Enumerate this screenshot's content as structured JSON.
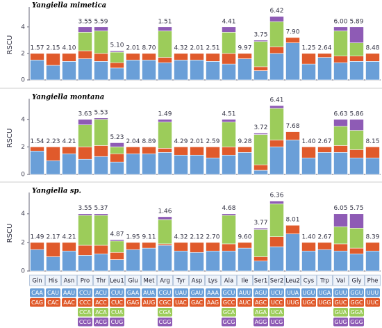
{
  "chart_data": [
    {
      "type": "bar",
      "stacked": true,
      "title": "Yangiella mimetica",
      "ylabel": "RSCU",
      "ylim": [
        0,
        5.3
      ],
      "yticks": [
        0,
        2,
        4
      ],
      "annotations": [
        "1.57",
        "2.15",
        "4.10",
        "3.55",
        "5.59",
        "5.10",
        "2.01",
        "8.70",
        "1.51",
        "4.32",
        "2.01",
        "2.51",
        "4.41",
        "9.97",
        "3.75",
        "6.42",
        "7.90",
        "1.25",
        "2.64",
        "6.00",
        "5.89",
        "8.48"
      ],
      "series": [
        {
          "color": "#6a9fd8",
          "values": [
            1.5,
            1.1,
            1.4,
            1.6,
            1.4,
            0.9,
            1.5,
            1.5,
            1.3,
            1.5,
            1.5,
            1.4,
            1.2,
            1.6,
            0.7,
            2.0,
            2.8,
            1.2,
            1.7,
            1.3,
            1.4,
            1.4
          ]
        },
        {
          "color": "#e05a2b",
          "values": [
            0.5,
            0.9,
            0.6,
            0.6,
            0.6,
            0.4,
            0.5,
            0.5,
            0.4,
            0.5,
            0.5,
            0.6,
            0.8,
            0.4,
            0.3,
            0.5,
            0.4,
            0.8,
            0.3,
            0.5,
            0.4,
            0.6
          ]
        },
        {
          "color": "#9ccc5a",
          "values": [
            null,
            null,
            null,
            1.4,
            1.7,
            0.8,
            null,
            null,
            2.0,
            null,
            null,
            null,
            1.6,
            null,
            1.9,
            1.9,
            null,
            null,
            null,
            1.9,
            1.0,
            null
          ]
        },
        {
          "color": "#8e5bb5",
          "values": [
            null,
            null,
            null,
            0.4,
            0.3,
            0.1,
            null,
            null,
            0.3,
            null,
            null,
            null,
            0.4,
            null,
            0.1,
            0.4,
            null,
            null,
            null,
            0.3,
            1.2,
            null
          ]
        }
      ]
    },
    {
      "type": "bar",
      "stacked": true,
      "title": "Yangiella montana",
      "ylabel": "RSCU",
      "ylim": [
        0,
        5.3
      ],
      "yticks": [
        0,
        2,
        4
      ],
      "annotations": [
        "1.54",
        "2.23",
        "4.21",
        "3.63",
        "5.53",
        "5.23",
        "2.04",
        "8.89",
        "1.49",
        "4.29",
        "2.01",
        "2.59",
        "4.51",
        "9.28",
        "3.72",
        "6.41",
        "7.68",
        "1.40",
        "2.67",
        "6.63",
        "5.86",
        "8.15"
      ],
      "series": [
        {
          "color": "#6a9fd8",
          "values": [
            1.7,
            1.0,
            1.5,
            1.1,
            1.3,
            0.9,
            1.5,
            1.5,
            1.6,
            1.4,
            1.4,
            1.2,
            1.4,
            1.6,
            0.3,
            2.0,
            2.5,
            1.2,
            1.6,
            1.6,
            1.2,
            1.2
          ]
        },
        {
          "color": "#e05a2b",
          "values": [
            0.3,
            1.0,
            0.5,
            0.9,
            0.8,
            0.6,
            0.5,
            0.5,
            0.3,
            0.6,
            0.6,
            0.8,
            0.6,
            0.4,
            0.4,
            0.5,
            0.6,
            0.8,
            0.4,
            0.5,
            0.6,
            0.8
          ]
        },
        {
          "color": "#9ccc5a",
          "values": [
            null,
            null,
            null,
            1.6,
            1.9,
            0.5,
            null,
            null,
            1.9,
            null,
            null,
            null,
            1.8,
            null,
            2.2,
            2.3,
            null,
            null,
            null,
            1.4,
            1.4,
            null
          ]
        },
        {
          "color": "#8e5bb5",
          "values": [
            null,
            null,
            null,
            0.4,
            0.1,
            0.3,
            null,
            null,
            0.2,
            null,
            null,
            null,
            0.2,
            null,
            0.1,
            0.2,
            null,
            null,
            null,
            0.5,
            0.8,
            null
          ]
        }
      ]
    },
    {
      "type": "bar",
      "stacked": true,
      "title": "Yangiella sp.",
      "ylabel": "RSCU",
      "ylim": [
        0,
        5.3
      ],
      "yticks": [
        0,
        2,
        4
      ],
      "categories": [
        "Gln",
        "His",
        "Asn",
        "Pro",
        "Thr",
        "Leu1",
        "Glu",
        "Met",
        "Arg",
        "Tyr",
        "Asp",
        "Lys",
        "Ala",
        "Ile",
        "Ser1",
        "Ser2",
        "Leu2",
        "Cys",
        "Trp",
        "Val",
        "Gly",
        "Phe"
      ],
      "annotations": [
        "1.49",
        "2.17",
        "4.21",
        "3.55",
        "5.37",
        "4.87",
        "1.95",
        "9.11",
        "1.46",
        "4.32",
        "2.12",
        "2.70",
        "4.68",
        "9.60",
        "3.77",
        "6.36",
        "8.01",
        "1.40",
        "2.67",
        "6.05",
        "5.75",
        "8.39"
      ],
      "series": [
        {
          "color": "#6a9fd8",
          "values": [
            1.5,
            1.0,
            1.4,
            1.1,
            1.2,
            0.8,
            1.5,
            1.6,
            1.8,
            1.4,
            1.3,
            1.4,
            1.4,
            1.6,
            0.7,
            1.7,
            2.6,
            1.4,
            1.5,
            1.4,
            1.2,
            1.4
          ]
        },
        {
          "color": "#e05a2b",
          "values": [
            0.5,
            1.0,
            0.6,
            0.7,
            0.6,
            0.5,
            0.5,
            0.4,
            0.1,
            0.6,
            0.7,
            0.6,
            0.5,
            0.4,
            0.3,
            0.7,
            0.6,
            0.6,
            0.5,
            0.5,
            0.4,
            0.6
          ]
        },
        {
          "color": "#9ccc5a",
          "values": [
            null,
            null,
            null,
            2.1,
            2.1,
            0.8,
            null,
            null,
            1.7,
            null,
            null,
            null,
            2.0,
            null,
            1.9,
            2.3,
            null,
            null,
            null,
            1.2,
            1.4,
            null
          ]
        },
        {
          "color": "#8e5bb5",
          "values": [
            null,
            null,
            null,
            0.1,
            0.1,
            0.1,
            null,
            null,
            0.2,
            null,
            null,
            null,
            0.1,
            null,
            0.1,
            0.2,
            null,
            null,
            null,
            0.9,
            1.0,
            null
          ]
        }
      ]
    }
  ],
  "codon_table": [
    [
      "CAA",
      "CAG"
    ],
    [
      "CAU",
      "CAC"
    ],
    [
      "AAU",
      "AAC"
    ],
    [
      "CCU",
      "CCC",
      "CCA",
      "CCG"
    ],
    [
      "ACU",
      "ACC",
      "ACA",
      "ACG"
    ],
    [
      "CUU",
      "CUC",
      "CUA",
      "CUG"
    ],
    [
      "GAA",
      "GAG"
    ],
    [
      "AUA",
      "AUG"
    ],
    [
      "CGU",
      "CGC",
      "CGA",
      "CGG"
    ],
    [
      "UAU",
      "UAC"
    ],
    [
      "GAU",
      "GAC"
    ],
    [
      "AAA",
      "AAG"
    ],
    [
      "GCU",
      "GCC",
      "GCA",
      "GCG"
    ],
    [
      "AUU",
      "AUC"
    ],
    [
      "AGU",
      "AGC",
      "AGA",
      "AGG"
    ],
    [
      "UCU",
      "UCC",
      "UCA",
      "UCG"
    ],
    [
      "UUA",
      "UUG"
    ],
    [
      "UGU",
      "UGC"
    ],
    [
      "UGA",
      "UGG"
    ],
    [
      "GUU",
      "GUC",
      "GUA",
      "GUG"
    ],
    [
      "GGU",
      "GGC",
      "GGA",
      "GGG"
    ],
    [
      "UUU",
      "UUC"
    ]
  ]
}
